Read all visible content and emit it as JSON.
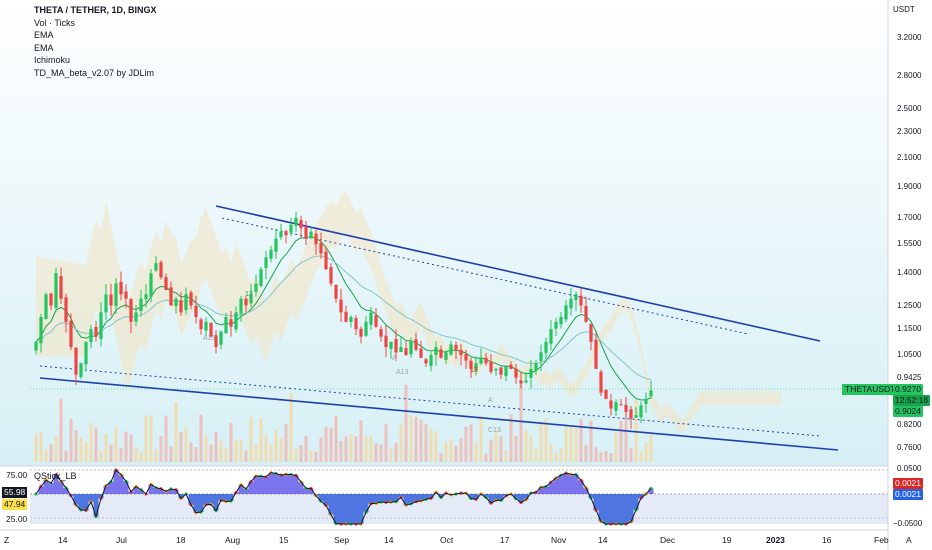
{
  "legend": {
    "title": "THETA / TETHER, 1D, BINGX",
    "items": [
      "Vol · Ticks",
      "EMA",
      "EMA",
      "Ichimoku",
      "TD_MA_beta_v2.07 by JDLim"
    ]
  },
  "price_axis": {
    "currency": "USDT",
    "ticks": [
      "3.2000",
      "2.8000",
      "2.5000",
      "2.3000",
      "2.1000",
      "1.9000",
      "1.7000",
      "1.5500",
      "1.4000",
      "1.2500",
      "1.1500",
      "1.0500",
      "0.9425",
      "0.8200",
      "0.7600"
    ]
  },
  "price_tags": {
    "symbol": "THETAUSDT",
    "last_price": "0.9270",
    "countdown": "12:52:18",
    "level": "0.9024"
  },
  "lower_pane": {
    "name": "QStick_LB",
    "left_values": [
      "75.00",
      "55.98",
      "47.94",
      "25.00"
    ],
    "right_ticks": [
      "0.0500",
      "0.0021",
      "0.0021",
      "−0.0500"
    ]
  },
  "chart_annotations": [
    "13",
    "A13",
    "A13",
    "13",
    "A",
    "A",
    "C13"
  ],
  "time_axis": {
    "left_corner": "Z",
    "right_corner": "A",
    "labels": [
      "14",
      "Jul",
      "18",
      "Aug",
      "15",
      "Sep",
      "14",
      "Oct",
      "17",
      "Nov",
      "14",
      "Dec",
      "19",
      "2023",
      "16",
      "Feb"
    ]
  },
  "colors": {
    "up": "#22c55e",
    "down": "#ef4444",
    "channel": "#1e40af",
    "last_price": "#22c55e",
    "ichimoku_cloud": "#f4e4c1"
  },
  "chart_data": {
    "type": "candlestick",
    "symbol": "THETA / TETHER",
    "interval": "1D",
    "exchange": "BINGX",
    "y_scale": "log",
    "ylim": [
      0.72,
      3.5
    ],
    "last_price": 0.927,
    "close": [
      1.1,
      1.2,
      1.3,
      1.25,
      1.4,
      1.28,
      1.18,
      1.08,
      0.98,
      1.02,
      1.1,
      1.15,
      1.12,
      1.22,
      1.3,
      1.25,
      1.35,
      1.3,
      1.28,
      1.18,
      1.22,
      1.28,
      1.3,
      1.4,
      1.45,
      1.38,
      1.32,
      1.25,
      1.28,
      1.22,
      1.3,
      1.25,
      1.2,
      1.15,
      1.18,
      1.12,
      1.08,
      1.14,
      1.2,
      1.16,
      1.22,
      1.28,
      1.25,
      1.3,
      1.35,
      1.42,
      1.48,
      1.52,
      1.58,
      1.62,
      1.6,
      1.66,
      1.7,
      1.64,
      1.58,
      1.62,
      1.55,
      1.5,
      1.42,
      1.35,
      1.28,
      1.22,
      1.18,
      1.2,
      1.15,
      1.12,
      1.18,
      1.22,
      1.16,
      1.12,
      1.08,
      1.1,
      1.06,
      1.08,
      1.05,
      1.1,
      1.07,
      1.04,
      1.02,
      1.05,
      1.08,
      1.04,
      1.06,
      1.09,
      1.07,
      1.05,
      1.03,
      1.0,
      1.02,
      1.04,
      1.02,
      0.99,
      1.0,
      0.98,
      1.01,
      1.0,
      0.97,
      0.95,
      0.96,
      1.0,
      1.02,
      1.06,
      1.1,
      1.15,
      1.18,
      1.2,
      1.25,
      1.28,
      1.3,
      1.25,
      1.18,
      1.1,
      1.0,
      0.92,
      0.9,
      0.87,
      0.89,
      0.88,
      0.86,
      0.84,
      0.85,
      0.88,
      0.9,
      0.927
    ]
  }
}
